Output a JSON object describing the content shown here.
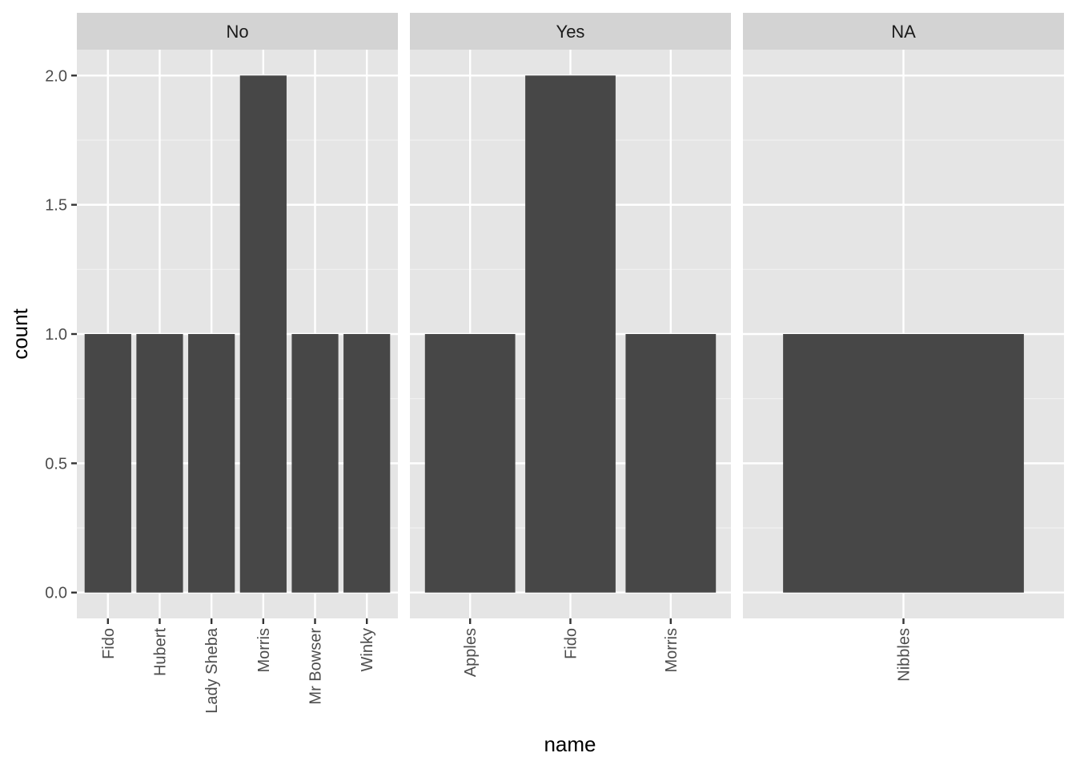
{
  "chart_data": {
    "type": "bar",
    "xlabel": "name",
    "ylabel": "count",
    "ylim": [
      -0.1,
      2.1
    ],
    "y_ticks": [
      "0.0",
      "0.5",
      "1.0",
      "1.5",
      "2.0"
    ],
    "grid": true,
    "facets": [
      {
        "strip": "No",
        "categories": [
          "Fido",
          "Hubert",
          "Lady Sheba",
          "Morris",
          "Mr Bowser",
          "Winky"
        ],
        "values": [
          1,
          1,
          1,
          2,
          1,
          1
        ]
      },
      {
        "strip": "Yes",
        "categories": [
          "Apples",
          "Fido",
          "Morris"
        ],
        "values": [
          1,
          2,
          1
        ]
      },
      {
        "strip": "NA",
        "categories": [
          "Nibbles"
        ],
        "values": [
          1
        ]
      }
    ],
    "colors": {
      "bar": "#474747",
      "panel_bg": "#e5e5e5",
      "strip_bg": "#d3d3d3",
      "grid_major": "#ffffff",
      "grid_minor": "#f2f2f2"
    }
  }
}
